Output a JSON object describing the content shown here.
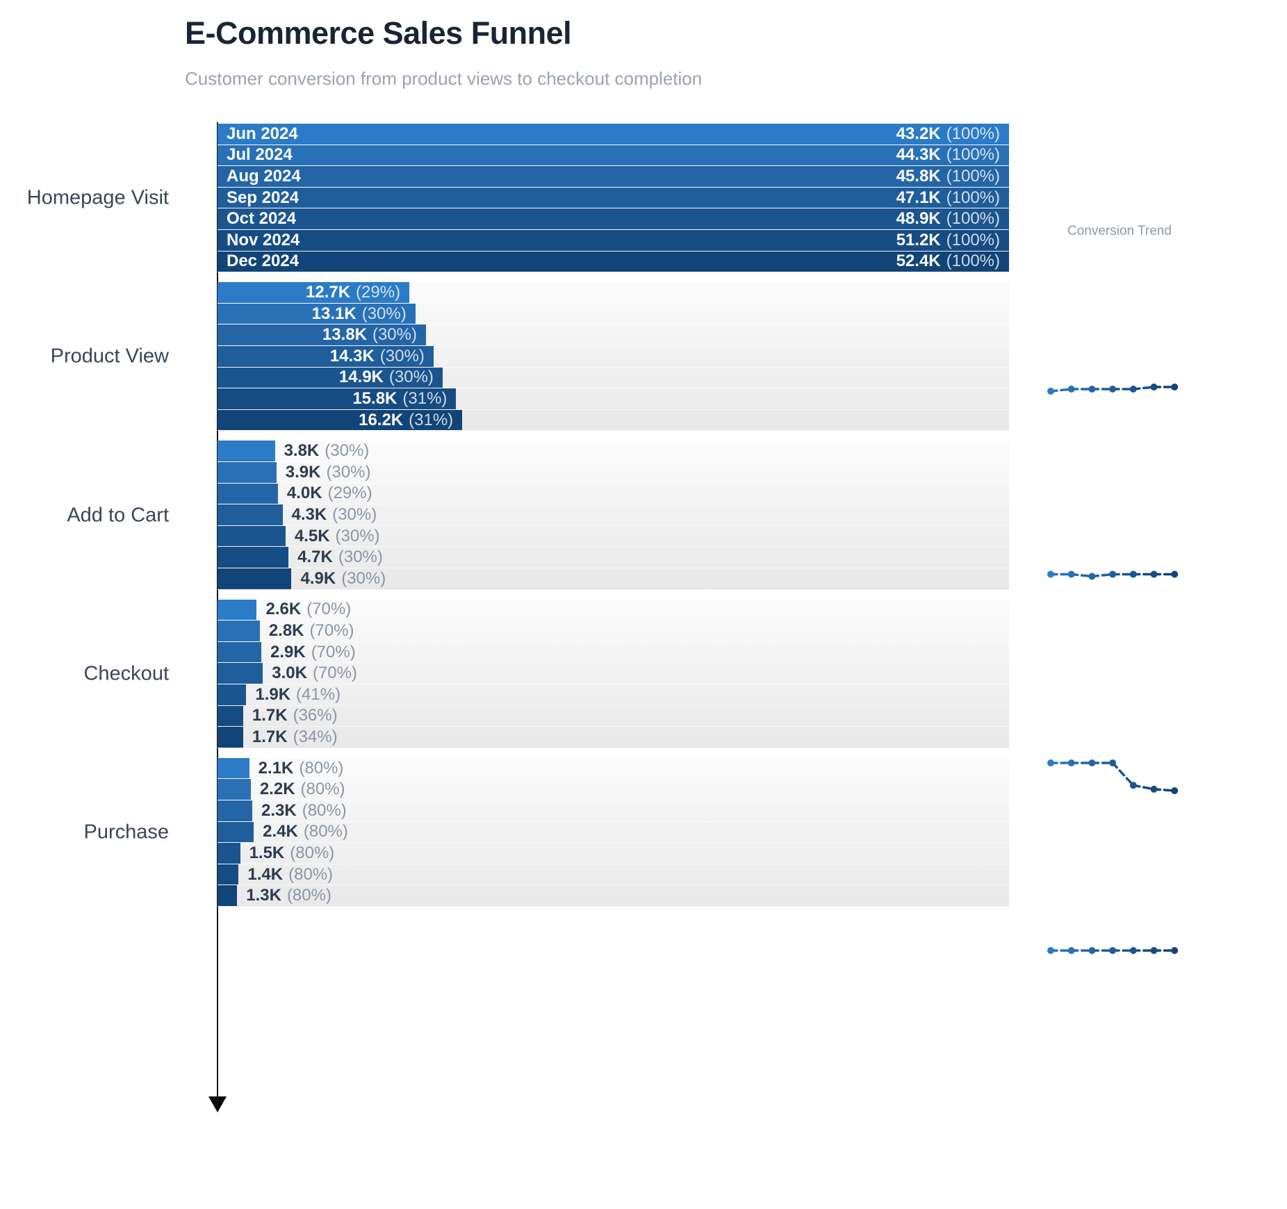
{
  "chart_data": {
    "type": "bar",
    "variant": "horizontal-funnel-by-month",
    "title": "E-Commerce Sales Funnel",
    "subtitle": "Customer conversion from product views to checkout completion",
    "trend_panel_label": "Conversion Trend",
    "categories": [
      "Jun 2024",
      "Jul 2024",
      "Aug 2024",
      "Sep 2024",
      "Oct 2024",
      "Nov 2024",
      "Dec 2024"
    ],
    "month_colors": [
      "#2C7BC6",
      "#2971B7",
      "#2465A8",
      "#1F5D9B",
      "#1A5590",
      "#164C84",
      "#114478"
    ],
    "max_value_k": 52.4,
    "stages": [
      {
        "label": "Homepage Visit",
        "show_month_labels": true,
        "labels_inside": true,
        "full_width": true,
        "rows": [
          {
            "month": "Jun 2024",
            "value_k": 43.2,
            "value_label": "43.2K",
            "pct_label": "(100%)"
          },
          {
            "month": "Jul 2024",
            "value_k": 44.3,
            "value_label": "44.3K",
            "pct_label": "(100%)"
          },
          {
            "month": "Aug 2024",
            "value_k": 45.8,
            "value_label": "45.8K",
            "pct_label": "(100%)"
          },
          {
            "month": "Sep 2024",
            "value_k": 47.1,
            "value_label": "47.1K",
            "pct_label": "(100%)"
          },
          {
            "month": "Oct 2024",
            "value_k": 48.9,
            "value_label": "48.9K",
            "pct_label": "(100%)"
          },
          {
            "month": "Nov 2024",
            "value_k": 51.2,
            "value_label": "51.2K",
            "pct_label": "(100%)"
          },
          {
            "month": "Dec 2024",
            "value_k": 52.4,
            "value_label": "52.4K",
            "pct_label": "(100%)"
          }
        ]
      },
      {
        "label": "Product View",
        "show_month_labels": false,
        "labels_inside": true,
        "full_width": false,
        "rows": [
          {
            "month": "Jun 2024",
            "value_k": 12.7,
            "value_label": "12.7K",
            "pct_label": "(29%)"
          },
          {
            "month": "Jul 2024",
            "value_k": 13.1,
            "value_label": "13.1K",
            "pct_label": "(30%)"
          },
          {
            "month": "Aug 2024",
            "value_k": 13.8,
            "value_label": "13.8K",
            "pct_label": "(30%)"
          },
          {
            "month": "Sep 2024",
            "value_k": 14.3,
            "value_label": "14.3K",
            "pct_label": "(30%)"
          },
          {
            "month": "Oct 2024",
            "value_k": 14.9,
            "value_label": "14.9K",
            "pct_label": "(30%)"
          },
          {
            "month": "Nov 2024",
            "value_k": 15.8,
            "value_label": "15.8K",
            "pct_label": "(31%)"
          },
          {
            "month": "Dec 2024",
            "value_k": 16.2,
            "value_label": "16.2K",
            "pct_label": "(31%)"
          }
        ]
      },
      {
        "label": "Add to Cart",
        "show_month_labels": false,
        "labels_inside": false,
        "full_width": false,
        "rows": [
          {
            "month": "Jun 2024",
            "value_k": 3.8,
            "value_label": "3.8K",
            "pct_label": "(30%)"
          },
          {
            "month": "Jul 2024",
            "value_k": 3.9,
            "value_label": "3.9K",
            "pct_label": "(30%)"
          },
          {
            "month": "Aug 2024",
            "value_k": 4.0,
            "value_label": "4.0K",
            "pct_label": "(29%)"
          },
          {
            "month": "Sep 2024",
            "value_k": 4.3,
            "value_label": "4.3K",
            "pct_label": "(30%)"
          },
          {
            "month": "Oct 2024",
            "value_k": 4.5,
            "value_label": "4.5K",
            "pct_label": "(30%)"
          },
          {
            "month": "Nov 2024",
            "value_k": 4.7,
            "value_label": "4.7K",
            "pct_label": "(30%)"
          },
          {
            "month": "Dec 2024",
            "value_k": 4.9,
            "value_label": "4.9K",
            "pct_label": "(30%)"
          }
        ]
      },
      {
        "label": "Checkout",
        "show_month_labels": false,
        "labels_inside": false,
        "full_width": false,
        "rows": [
          {
            "month": "Jun 2024",
            "value_k": 2.6,
            "value_label": "2.6K",
            "pct_label": "(70%)"
          },
          {
            "month": "Jul 2024",
            "value_k": 2.8,
            "value_label": "2.8K",
            "pct_label": "(70%)"
          },
          {
            "month": "Aug 2024",
            "value_k": 2.9,
            "value_label": "2.9K",
            "pct_label": "(70%)"
          },
          {
            "month": "Sep 2024",
            "value_k": 3.0,
            "value_label": "3.0K",
            "pct_label": "(70%)"
          },
          {
            "month": "Oct 2024",
            "value_k": 1.9,
            "value_label": "1.9K",
            "pct_label": "(41%)"
          },
          {
            "month": "Nov 2024",
            "value_k": 1.7,
            "value_label": "1.7K",
            "pct_label": "(36%)"
          },
          {
            "month": "Dec 2024",
            "value_k": 1.7,
            "value_label": "1.7K",
            "pct_label": "(34%)"
          }
        ]
      },
      {
        "label": "Purchase",
        "show_month_labels": false,
        "labels_inside": false,
        "full_width": false,
        "rows": [
          {
            "month": "Jun 2024",
            "value_k": 2.1,
            "value_label": "2.1K",
            "pct_label": "(80%)"
          },
          {
            "month": "Jul 2024",
            "value_k": 2.2,
            "value_label": "2.2K",
            "pct_label": "(80%)"
          },
          {
            "month": "Aug 2024",
            "value_k": 2.3,
            "value_label": "2.3K",
            "pct_label": "(80%)"
          },
          {
            "month": "Sep 2024",
            "value_k": 2.4,
            "value_label": "2.4K",
            "pct_label": "(80%)"
          },
          {
            "month": "Oct 2024",
            "value_k": 1.5,
            "value_label": "1.5K",
            "pct_label": "(80%)"
          },
          {
            "month": "Nov 2024",
            "value_k": 1.4,
            "value_label": "1.4K",
            "pct_label": "(80%)"
          },
          {
            "month": "Dec 2024",
            "value_k": 1.3,
            "value_label": "1.3K",
            "pct_label": "(80%)"
          }
        ]
      }
    ],
    "sparklines": [
      {
        "stage": "Product View",
        "values_pct": [
          29,
          30,
          30,
          30,
          30,
          31,
          31
        ]
      },
      {
        "stage": "Add to Cart",
        "values_pct": [
          30,
          30,
          29,
          30,
          30,
          30,
          30
        ]
      },
      {
        "stage": "Checkout",
        "values_pct": [
          70,
          70,
          70,
          70,
          41,
          36,
          34
        ]
      },
      {
        "stage": "Purchase",
        "values_pct": [
          80,
          80,
          80,
          80,
          80,
          80,
          80
        ]
      }
    ],
    "colors": {
      "axis": "#161616",
      "title": "#1b2435",
      "subtitle": "#9aa3af",
      "stage_label": "#3a4556",
      "outside_value": "#2e3a4e",
      "outside_pct": "#8b95a4",
      "trend_label": "#8e97a6",
      "block_bg_top": "#fbfbfb",
      "block_bg_bottom": "#e8e8e8"
    }
  }
}
